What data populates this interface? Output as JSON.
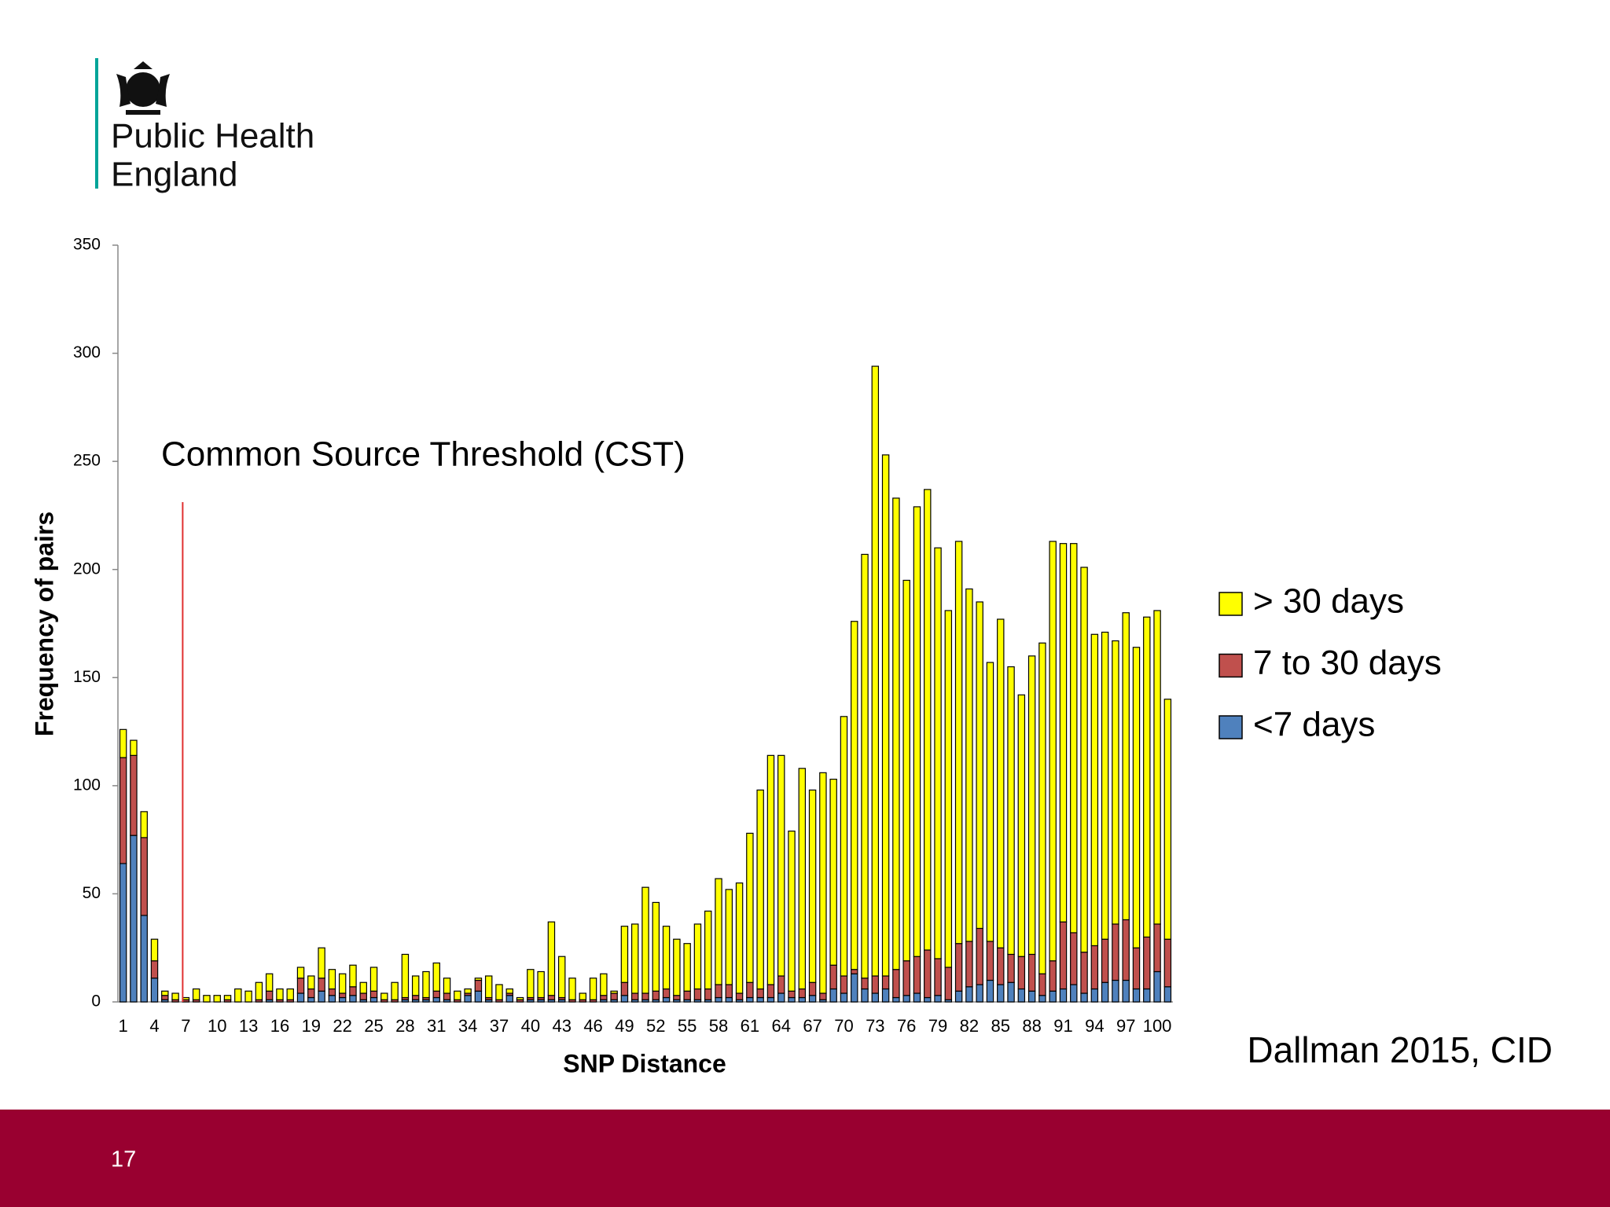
{
  "header": {
    "org_line1": "Public Health",
    "org_line2": "England"
  },
  "chart_data": {
    "type": "stacked_bar",
    "xlabel": "SNP Distance",
    "ylabel": "Frequency  of pairs",
    "annotation": "Common Source Threshold (CST)",
    "threshold_x": 7,
    "threshold_color": "#e03030",
    "categories": [
      1,
      null,
      null,
      4,
      null,
      null,
      7,
      null,
      null,
      10,
      null,
      null,
      13,
      null,
      null,
      16,
      null,
      null,
      19,
      null,
      null,
      22,
      null,
      null,
      25,
      null,
      null,
      28,
      null,
      null,
      31,
      null,
      null,
      34,
      null,
      null,
      37,
      null,
      null,
      40,
      null,
      null,
      43,
      null,
      null,
      46,
      null,
      null,
      49,
      null,
      null,
      52,
      null,
      null,
      55,
      null,
      null,
      58,
      null,
      null,
      61,
      null,
      null,
      64,
      null,
      null,
      67,
      null,
      null,
      70,
      null,
      null,
      73,
      null,
      null,
      76,
      null,
      null,
      79,
      null,
      null,
      82,
      null,
      null,
      85,
      null,
      null,
      88,
      null,
      null,
      91,
      null,
      null,
      94,
      null,
      null,
      97,
      null,
      null,
      100,
      null
    ],
    "series": [
      {
        "name": "<7 days",
        "color": "#4f81bd",
        "values": [
          64,
          77,
          40,
          11,
          1,
          0,
          0,
          0,
          0,
          0,
          0,
          0,
          0,
          0,
          1,
          0,
          0,
          4,
          2,
          5,
          3,
          2,
          3,
          1,
          2,
          0,
          0,
          1,
          1,
          1,
          2,
          1,
          0,
          3,
          5,
          1,
          0,
          3,
          0,
          1,
          1,
          1,
          1,
          0,
          0,
          0,
          1,
          1,
          3,
          1,
          1,
          1,
          2,
          1,
          1,
          1,
          1,
          2,
          2,
          1,
          2,
          2,
          2,
          4,
          2,
          2,
          3,
          1,
          6,
          4,
          13,
          6,
          4,
          6,
          2,
          3,
          4,
          2,
          3,
          1,
          5,
          7,
          8,
          10,
          8,
          9,
          6,
          5,
          3,
          5,
          6,
          8,
          4,
          6,
          9,
          10,
          10,
          6,
          6,
          14,
          7
        ]
      },
      {
        "name": "7 to 30 days",
        "color": "#c0504d",
        "values": [
          49,
          37,
          36,
          8,
          2,
          1,
          1,
          1,
          0,
          0,
          1,
          0,
          0,
          1,
          4,
          1,
          1,
          7,
          4,
          6,
          3,
          2,
          4,
          3,
          3,
          1,
          1,
          1,
          2,
          1,
          3,
          3,
          1,
          1,
          5,
          1,
          1,
          1,
          1,
          1,
          1,
          2,
          1,
          1,
          1,
          1,
          2,
          3,
          6,
          3,
          3,
          4,
          4,
          2,
          4,
          5,
          5,
          6,
          6,
          3,
          7,
          4,
          6,
          8,
          3,
          4,
          6,
          3,
          11,
          8,
          2,
          5,
          8,
          6,
          13,
          16,
          17,
          22,
          17,
          15,
          22,
          21,
          26,
          18,
          17,
          13,
          15,
          17,
          10,
          14,
          31,
          24,
          19,
          20,
          20,
          26,
          28,
          19,
          24,
          22,
          22
        ]
      },
      {
        "name": "> 30 days",
        "color": "#ffff00",
        "values": [
          13,
          7,
          12,
          10,
          2,
          3,
          1,
          5,
          3,
          3,
          2,
          6,
          5,
          8,
          8,
          5,
          5,
          5,
          6,
          14,
          9,
          9,
          10,
          5,
          11,
          3,
          8,
          20,
          9,
          12,
          13,
          7,
          4,
          2,
          1,
          10,
          7,
          2,
          1,
          13,
          12,
          34,
          19,
          10,
          3,
          10,
          10,
          1,
          26,
          32,
          49,
          41,
          29,
          26,
          22,
          30,
          36,
          49,
          44,
          51,
          69,
          92,
          106,
          102,
          74,
          102,
          89,
          102,
          86,
          120,
          161,
          196,
          282,
          241,
          218,
          176,
          208,
          213,
          190,
          165,
          186,
          163,
          151,
          129,
          152,
          133,
          121,
          138,
          153,
          194,
          175,
          180,
          178,
          144,
          142,
          131,
          142,
          139,
          148,
          145,
          111
        ]
      }
    ],
    "ylim": [
      0,
      350
    ],
    "yticks": [
      0,
      50,
      100,
      150,
      200,
      250,
      300,
      350
    ]
  },
  "citation": "Dallman 2015, CID",
  "page_number": "17"
}
